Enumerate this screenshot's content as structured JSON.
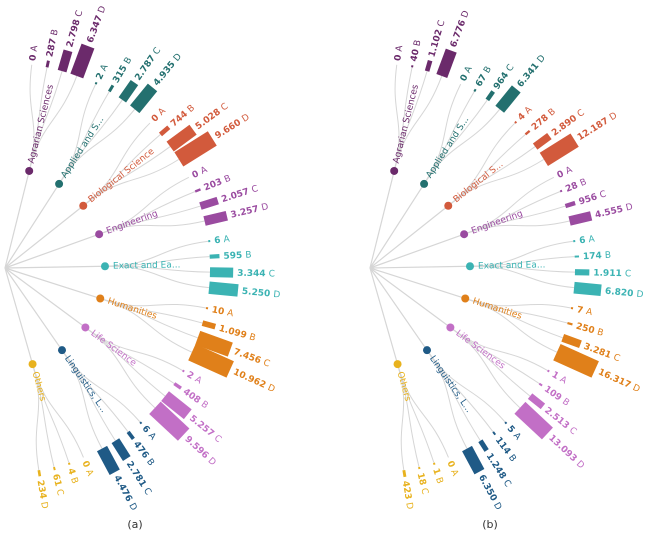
{
  "chart_data": [
    {
      "type": "radial-tree-bar",
      "caption": "(a)",
      "categories": [
        "A",
        "B",
        "C",
        "D"
      ],
      "areas": [
        {
          "name": "Agrarian Sciences",
          "color": "#6b2a6b",
          "values": [
            {
              "cls": "A",
              "text": "0",
              "value": 0
            },
            {
              "cls": "B",
              "text": "287",
              "value": 287
            },
            {
              "cls": "C",
              "text": "2.798",
              "value": 2798
            },
            {
              "cls": "D",
              "text": "6.347",
              "value": 6347
            }
          ]
        },
        {
          "name": "Applied and S...",
          "color": "#23706f",
          "values": [
            {
              "cls": "A",
              "text": "2",
              "value": 2
            },
            {
              "cls": "B",
              "text": "315",
              "value": 315
            },
            {
              "cls": "C",
              "text": "2.787",
              "value": 2787
            },
            {
              "cls": "D",
              "text": "4.935",
              "value": 4935
            }
          ]
        },
        {
          "name": "Biological Science",
          "color": "#d25a3c",
          "values": [
            {
              "cls": "A",
              "text": "0",
              "value": 0
            },
            {
              "cls": "B",
              "text": "744",
              "value": 744
            },
            {
              "cls": "C",
              "text": "5.028",
              "value": 5028
            },
            {
              "cls": "D",
              "text": "9.660",
              "value": 9660
            }
          ]
        },
        {
          "name": "Engineering",
          "color": "#9a4ba0",
          "values": [
            {
              "cls": "A",
              "text": "0",
              "value": 0
            },
            {
              "cls": "B",
              "text": "203",
              "value": 203
            },
            {
              "cls": "C",
              "text": "2.057",
              "value": 2057
            },
            {
              "cls": "D",
              "text": "3.257",
              "value": 3257
            }
          ]
        },
        {
          "name": "Exact and Ea...",
          "color": "#3bb3b3",
          "values": [
            {
              "cls": "A",
              "text": "6",
              "value": 6
            },
            {
              "cls": "B",
              "text": "595",
              "value": 595
            },
            {
              "cls": "C",
              "text": "3.344",
              "value": 3344
            },
            {
              "cls": "D",
              "text": "5.250",
              "value": 5250
            }
          ]
        },
        {
          "name": "Humanities",
          "color": "#e0801a",
          "values": [
            {
              "cls": "A",
              "text": "10",
              "value": 10
            },
            {
              "cls": "B",
              "text": "1.099",
              "value": 1099
            },
            {
              "cls": "C",
              "text": "7.456",
              "value": 7456
            },
            {
              "cls": "D",
              "text": "10.962",
              "value": 10962
            }
          ]
        },
        {
          "name": "Life Science",
          "color": "#c26fc6",
          "values": [
            {
              "cls": "A",
              "text": "2",
              "value": 2
            },
            {
              "cls": "B",
              "text": "408",
              "value": 408
            },
            {
              "cls": "C",
              "text": "5.257",
              "value": 5257
            },
            {
              "cls": "D",
              "text": "9.596",
              "value": 9596
            }
          ]
        },
        {
          "name": "Linguistics, L...",
          "color": "#1f5a86",
          "values": [
            {
              "cls": "A",
              "text": "6",
              "value": 6
            },
            {
              "cls": "B",
              "text": "476",
              "value": 476
            },
            {
              "cls": "C",
              "text": "2.781",
              "value": 2781
            },
            {
              "cls": "D",
              "text": "4.476",
              "value": 4476
            }
          ]
        },
        {
          "name": "Others",
          "color": "#e8b21e",
          "values": [
            {
              "cls": "A",
              "text": "0",
              "value": 0
            },
            {
              "cls": "B",
              "text": "4",
              "value": 4
            },
            {
              "cls": "C",
              "text": "61",
              "value": 61
            },
            {
              "cls": "D",
              "text": "234",
              "value": 234
            }
          ]
        }
      ]
    },
    {
      "type": "radial-tree-bar",
      "caption": "(b)",
      "categories": [
        "A",
        "B",
        "C",
        "D"
      ],
      "areas": [
        {
          "name": "Agrarian Sciences",
          "color": "#6b2a6b",
          "values": [
            {
              "cls": "A",
              "text": "0",
              "value": 0
            },
            {
              "cls": "B",
              "text": "40",
              "value": 40
            },
            {
              "cls": "C",
              "text": "1.102",
              "value": 1102
            },
            {
              "cls": "D",
              "text": "6.776",
              "value": 6776
            }
          ]
        },
        {
          "name": "Applied and S...",
          "color": "#23706f",
          "values": [
            {
              "cls": "A",
              "text": "0",
              "value": 0
            },
            {
              "cls": "B",
              "text": "67",
              "value": 67
            },
            {
              "cls": "C",
              "text": "964",
              "value": 964
            },
            {
              "cls": "D",
              "text": "6.341",
              "value": 6341
            }
          ]
        },
        {
          "name": "Biological S...",
          "color": "#d25a3c",
          "values": [
            {
              "cls": "A",
              "text": "4",
              "value": 4
            },
            {
              "cls": "B",
              "text": "278",
              "value": 278
            },
            {
              "cls": "C",
              "text": "2.890",
              "value": 2890
            },
            {
              "cls": "D",
              "text": "12.187",
              "value": 12187
            }
          ]
        },
        {
          "name": "Engineering",
          "color": "#9a4ba0",
          "values": [
            {
              "cls": "A",
              "text": "0",
              "value": 0
            },
            {
              "cls": "B",
              "text": "28",
              "value": 28
            },
            {
              "cls": "C",
              "text": "956",
              "value": 956
            },
            {
              "cls": "D",
              "text": "4.555",
              "value": 4555
            }
          ]
        },
        {
          "name": "Exact and Ea...",
          "color": "#3bb3b3",
          "values": [
            {
              "cls": "A",
              "text": "6",
              "value": 6
            },
            {
              "cls": "B",
              "text": "174",
              "value": 174
            },
            {
              "cls": "C",
              "text": "1.911",
              "value": 1911
            },
            {
              "cls": "D",
              "text": "6.820",
              "value": 6820
            }
          ]
        },
        {
          "name": "Humanities",
          "color": "#e0801a",
          "values": [
            {
              "cls": "A",
              "text": "7",
              "value": 7
            },
            {
              "cls": "B",
              "text": "250",
              "value": 250
            },
            {
              "cls": "C",
              "text": "3.281",
              "value": 3281
            },
            {
              "cls": "D",
              "text": "16.317",
              "value": 16317
            }
          ]
        },
        {
          "name": "Life Sciences",
          "color": "#c26fc6",
          "values": [
            {
              "cls": "A",
              "text": "1",
              "value": 1
            },
            {
              "cls": "B",
              "text": "109",
              "value": 109
            },
            {
              "cls": "C",
              "text": "2.513",
              "value": 2513
            },
            {
              "cls": "D",
              "text": "13.093",
              "value": 13093
            }
          ]
        },
        {
          "name": "Linguistics, L...",
          "color": "#1f5a86",
          "values": [
            {
              "cls": "A",
              "text": "5",
              "value": 5
            },
            {
              "cls": "B",
              "text": "114",
              "value": 114
            },
            {
              "cls": "C",
              "text": "1.248",
              "value": 1248
            },
            {
              "cls": "D",
              "text": "6.350",
              "value": 6350
            }
          ]
        },
        {
          "name": "Others",
          "color": "#e8b21e",
          "values": [
            {
              "cls": "A",
              "text": "0",
              "value": 0
            },
            {
              "cls": "B",
              "text": "1",
              "value": 1
            },
            {
              "cls": "C",
              "text": "18",
              "value": 18
            },
            {
              "cls": "D",
              "text": "423",
              "value": 423
            }
          ]
        }
      ]
    }
  ]
}
